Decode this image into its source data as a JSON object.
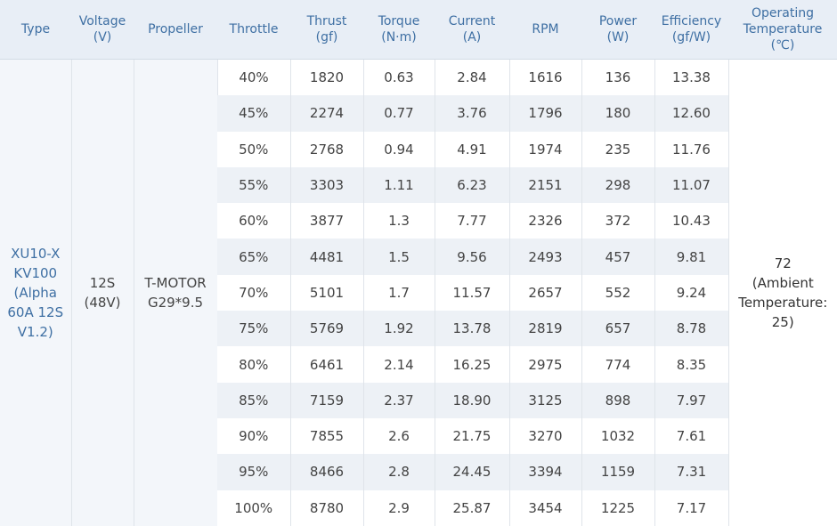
{
  "headers": {
    "type": "Type",
    "voltage": [
      "Voltage",
      "(V)"
    ],
    "propeller": "Propeller",
    "throttle": "Throttle",
    "thrust": [
      "Thrust",
      "(gf)"
    ],
    "torque": [
      "Torque",
      "(N·m)"
    ],
    "current": [
      "Current",
      "(A)"
    ],
    "rpm": "RPM",
    "power": [
      "Power",
      "(W)"
    ],
    "efficiency": [
      "Efficiency",
      "(gf/W)"
    ],
    "temperature": [
      "Operating",
      "Temperature",
      "(℃)"
    ]
  },
  "merged": {
    "type": [
      "XU10-X",
      "KV100",
      "(Alpha",
      "60A 12S",
      "V1.2)"
    ],
    "voltage": [
      "12S",
      "(48V)"
    ],
    "propeller": [
      "T-MOTOR",
      "G29*9.5"
    ],
    "temperature": [
      "72",
      "(Ambient",
      "Temperature:",
      "25)"
    ]
  },
  "rows": [
    {
      "throttle": "40%",
      "thrust": "1820",
      "torque": "0.63",
      "current": "2.84",
      "rpm": "1616",
      "power": "136",
      "efficiency": "13.38"
    },
    {
      "throttle": "45%",
      "thrust": "2274",
      "torque": "0.77",
      "current": "3.76",
      "rpm": "1796",
      "power": "180",
      "efficiency": "12.60"
    },
    {
      "throttle": "50%",
      "thrust": "2768",
      "torque": "0.94",
      "current": "4.91",
      "rpm": "1974",
      "power": "235",
      "efficiency": "11.76"
    },
    {
      "throttle": "55%",
      "thrust": "3303",
      "torque": "1.11",
      "current": "6.23",
      "rpm": "2151",
      "power": "298",
      "efficiency": "11.07"
    },
    {
      "throttle": "60%",
      "thrust": "3877",
      "torque": "1.3",
      "current": "7.77",
      "rpm": "2326",
      "power": "372",
      "efficiency": "10.43"
    },
    {
      "throttle": "65%",
      "thrust": "4481",
      "torque": "1.5",
      "current": "9.56",
      "rpm": "2493",
      "power": "457",
      "efficiency": "9.81"
    },
    {
      "throttle": "70%",
      "thrust": "5101",
      "torque": "1.7",
      "current": "11.57",
      "rpm": "2657",
      "power": "552",
      "efficiency": "9.24"
    },
    {
      "throttle": "75%",
      "thrust": "5769",
      "torque": "1.92",
      "current": "13.78",
      "rpm": "2819",
      "power": "657",
      "efficiency": "8.78"
    },
    {
      "throttle": "80%",
      "thrust": "6461",
      "torque": "2.14",
      "current": "16.25",
      "rpm": "2975",
      "power": "774",
      "efficiency": "8.35"
    },
    {
      "throttle": "85%",
      "thrust": "7159",
      "torque": "2.37",
      "current": "18.90",
      "rpm": "3125",
      "power": "898",
      "efficiency": "7.97"
    },
    {
      "throttle": "90%",
      "thrust": "7855",
      "torque": "2.6",
      "current": "21.75",
      "rpm": "3270",
      "power": "1032",
      "efficiency": "7.61"
    },
    {
      "throttle": "95%",
      "thrust": "8466",
      "torque": "2.8",
      "current": "24.45",
      "rpm": "3394",
      "power": "1159",
      "efficiency": "7.31"
    },
    {
      "throttle": "100%",
      "thrust": "8780",
      "torque": "2.9",
      "current": "25.87",
      "rpm": "3454",
      "power": "1225",
      "efficiency": "7.17"
    }
  ]
}
